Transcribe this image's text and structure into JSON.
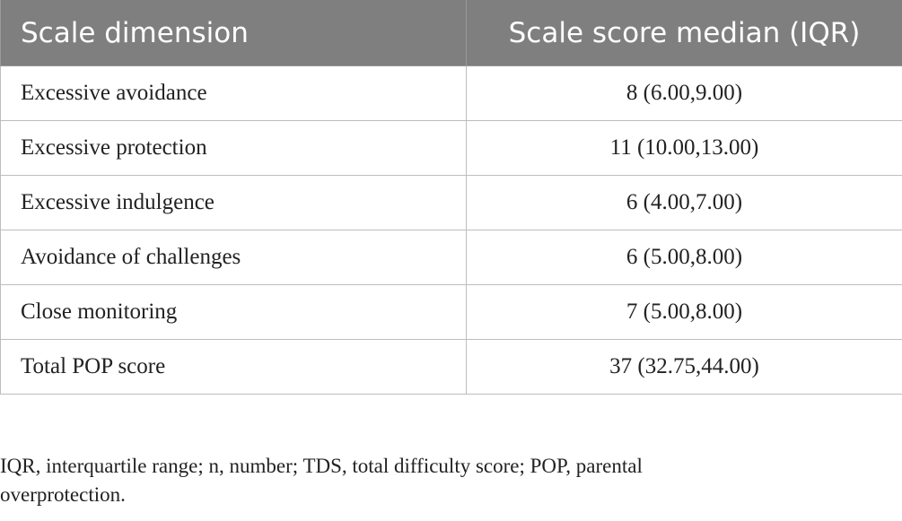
{
  "table": {
    "headers": [
      "Scale dimension",
      "Scale score median (IQR)"
    ],
    "rows": [
      {
        "dimension": "Excessive avoidance",
        "score": "8 (6.00,9.00)"
      },
      {
        "dimension": "Excessive protection",
        "score": "11 (10.00,13.00)"
      },
      {
        "dimension": "Excessive indulgence",
        "score": "6 (4.00,7.00)"
      },
      {
        "dimension": "Avoidance of challenges",
        "score": "6 (5.00,8.00)"
      },
      {
        "dimension": "Close monitoring",
        "score": "7 (5.00,8.00)"
      },
      {
        "dimension": "Total POP score",
        "score": "37 (32.75,44.00)"
      }
    ]
  },
  "footnote": {
    "line1": "IQR, interquartile range; n, number; TDS, total difficulty score; POP, parental",
    "line2": "overprotection."
  }
}
